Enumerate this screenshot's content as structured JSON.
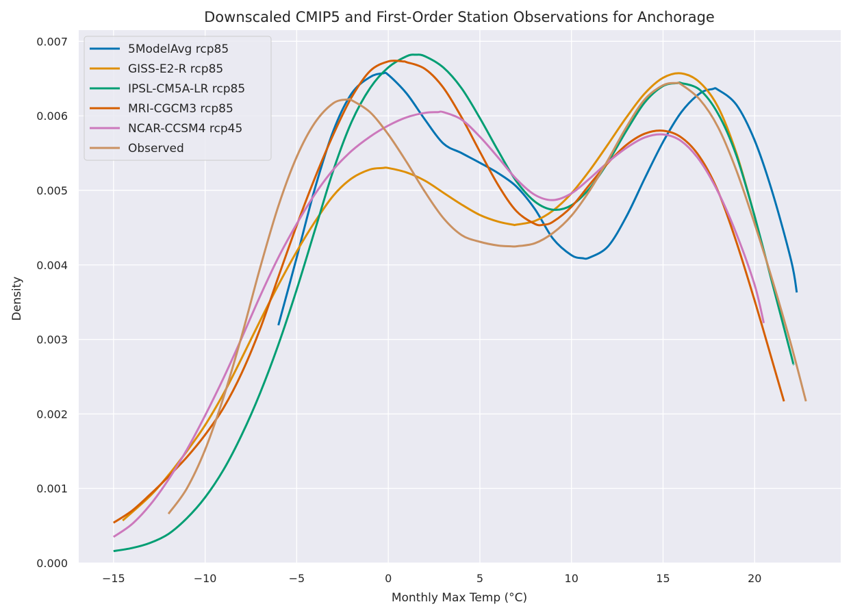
{
  "chart_data": {
    "type": "line",
    "title": "Downscaled CMIP5 and First-Order Station Observations for Anchorage",
    "xlabel": "Monthly Max Temp (°C)",
    "ylabel": "Density",
    "xlim": [
      -16.9,
      24.7
    ],
    "ylim": [
      0,
      0.00715
    ],
    "xticks": [
      -15,
      -10,
      -5,
      0,
      5,
      10,
      15,
      20
    ],
    "xtick_labels": [
      "−15",
      "−10",
      "−5",
      "0",
      "5",
      "10",
      "15",
      "20"
    ],
    "yticks": [
      0,
      0.001,
      0.002,
      0.003,
      0.004,
      0.005,
      0.006,
      0.007
    ],
    "ytick_labels": [
      "0.000",
      "0.001",
      "0.002",
      "0.003",
      "0.004",
      "0.005",
      "0.006",
      "0.007"
    ],
    "grid": true,
    "legend_position": "top-left",
    "background": "#eaeaf2",
    "series": [
      {
        "name": "5ModelAvg rcp85",
        "color": "#0173b2",
        "points": [
          [
            -6.0,
            0.00319
          ],
          [
            -5,
            0.0041
          ],
          [
            -4,
            0.00503
          ],
          [
            -3,
            0.0058
          ],
          [
            -2,
            0.0063
          ],
          [
            -1,
            0.00652
          ],
          [
            -0.3,
            0.00657
          ],
          [
            0,
            0.00655
          ],
          [
            1,
            0.0063
          ],
          [
            2,
            0.00595
          ],
          [
            3,
            0.00563
          ],
          [
            4,
            0.0055
          ],
          [
            5,
            0.00537
          ],
          [
            6,
            0.00523
          ],
          [
            7,
            0.00505
          ],
          [
            8,
            0.00475
          ],
          [
            9,
            0.00435
          ],
          [
            10,
            0.00413
          ],
          [
            10.6,
            0.00409
          ],
          [
            11,
            0.0041
          ],
          [
            12,
            0.00425
          ],
          [
            13,
            0.00465
          ],
          [
            14,
            0.00516
          ],
          [
            15,
            0.00565
          ],
          [
            16,
            0.00605
          ],
          [
            17,
            0.0063
          ],
          [
            17.7,
            0.00636
          ],
          [
            18,
            0.00635
          ],
          [
            19,
            0.00615
          ],
          [
            20,
            0.00567
          ],
          [
            21,
            0.00495
          ],
          [
            22,
            0.00405
          ],
          [
            22.3,
            0.00363
          ]
        ]
      },
      {
        "name": "GISS-E2-R rcp85",
        "color": "#de8f05",
        "points": [
          [
            -14.5,
            0.00057
          ],
          [
            -13,
            0.0009
          ],
          [
            -12,
            0.00118
          ],
          [
            -11,
            0.0015
          ],
          [
            -10,
            0.00185
          ],
          [
            -9,
            0.00227
          ],
          [
            -8,
            0.00275
          ],
          [
            -7,
            0.00325
          ],
          [
            -6,
            0.00373
          ],
          [
            -5,
            0.00418
          ],
          [
            -4,
            0.00458
          ],
          [
            -3,
            0.00493
          ],
          [
            -2,
            0.00516
          ],
          [
            -1,
            0.00528
          ],
          [
            -0.3,
            0.0053
          ],
          [
            0,
            0.0053
          ],
          [
            1,
            0.00524
          ],
          [
            2,
            0.00513
          ],
          [
            3,
            0.00497
          ],
          [
            4,
            0.00481
          ],
          [
            5,
            0.00467
          ],
          [
            6,
            0.00458
          ],
          [
            6.8,
            0.00454
          ],
          [
            7,
            0.00454
          ],
          [
            8,
            0.00459
          ],
          [
            9,
            0.00473
          ],
          [
            10,
            0.00496
          ],
          [
            11,
            0.00527
          ],
          [
            12,
            0.00562
          ],
          [
            13,
            0.00598
          ],
          [
            14,
            0.0063
          ],
          [
            15,
            0.00651
          ],
          [
            16,
            0.00657
          ],
          [
            17,
            0.00645
          ],
          [
            18,
            0.00612
          ],
          [
            19,
            0.0055
          ],
          [
            20,
            0.00465
          ],
          [
            20.2,
            0.00443
          ]
        ]
      },
      {
        "name": "IPSL-CM5A-LR rcp85",
        "color": "#029e73",
        "points": [
          [
            -15,
            0.00016
          ],
          [
            -14,
            0.0002
          ],
          [
            -13,
            0.00027
          ],
          [
            -12,
            0.00039
          ],
          [
            -11,
            0.0006
          ],
          [
            -10,
            0.00088
          ],
          [
            -9,
            0.00125
          ],
          [
            -8,
            0.00172
          ],
          [
            -7,
            0.00228
          ],
          [
            -6,
            0.00293
          ],
          [
            -5,
            0.00367
          ],
          [
            -4,
            0.00447
          ],
          [
            -3,
            0.00527
          ],
          [
            -2,
            0.00592
          ],
          [
            -1,
            0.00637
          ],
          [
            0,
            0.00665
          ],
          [
            1,
            0.0068
          ],
          [
            1.5,
            0.00682
          ],
          [
            2,
            0.0068
          ],
          [
            3,
            0.00665
          ],
          [
            4,
            0.00637
          ],
          [
            5,
            0.00597
          ],
          [
            6,
            0.00553
          ],
          [
            7,
            0.00512
          ],
          [
            8,
            0.00485
          ],
          [
            9,
            0.00474
          ],
          [
            10,
            0.0048
          ],
          [
            11,
            0.00503
          ],
          [
            12,
            0.00538
          ],
          [
            13,
            0.0058
          ],
          [
            14,
            0.00618
          ],
          [
            15,
            0.0064
          ],
          [
            15.8,
            0.00644
          ],
          [
            16,
            0.00644
          ],
          [
            17,
            0.00635
          ],
          [
            18,
            0.00603
          ],
          [
            19,
            0.00547
          ],
          [
            20,
            0.00465
          ],
          [
            21,
            0.00372
          ],
          [
            22,
            0.00278
          ],
          [
            22.1,
            0.00267
          ]
        ]
      },
      {
        "name": "MRI-CGCM3 rcp85",
        "color": "#d55e00",
        "points": [
          [
            -15,
            0.00054
          ],
          [
            -14,
            0.0007
          ],
          [
            -13,
            0.00092
          ],
          [
            -12,
            0.00116
          ],
          [
            -11,
            0.00142
          ],
          [
            -10,
            0.00172
          ],
          [
            -9,
            0.00208
          ],
          [
            -8,
            0.00255
          ],
          [
            -7,
            0.00314
          ],
          [
            -6,
            0.00384
          ],
          [
            -5,
            0.00453
          ],
          [
            -4,
            0.00517
          ],
          [
            -3,
            0.00575
          ],
          [
            -2,
            0.00625
          ],
          [
            -1,
            0.0066
          ],
          [
            0,
            0.00673
          ],
          [
            0.8,
            0.00673
          ],
          [
            1,
            0.00672
          ],
          [
            2,
            0.00663
          ],
          [
            3,
            0.00638
          ],
          [
            4,
            0.00598
          ],
          [
            5,
            0.00552
          ],
          [
            6,
            0.00507
          ],
          [
            7,
            0.00472
          ],
          [
            8,
            0.00455
          ],
          [
            8.5,
            0.00454
          ],
          [
            9,
            0.00458
          ],
          [
            10,
            0.00478
          ],
          [
            11,
            0.00508
          ],
          [
            12,
            0.00537
          ],
          [
            13,
            0.00561
          ],
          [
            14,
            0.00576
          ],
          [
            15,
            0.0058
          ],
          [
            16,
            0.00571
          ],
          [
            17,
            0.00545
          ],
          [
            18,
            0.00499
          ],
          [
            19,
            0.00431
          ],
          [
            20,
            0.00352
          ],
          [
            21,
            0.00268
          ],
          [
            21.6,
            0.00217
          ]
        ]
      },
      {
        "name": "NCAR-CCSM4 rcp45",
        "color": "#cc78bc",
        "points": [
          [
            -15,
            0.00035
          ],
          [
            -14,
            0.00052
          ],
          [
            -13,
            0.00078
          ],
          [
            -12,
            0.00112
          ],
          [
            -11,
            0.00152
          ],
          [
            -10,
            0.00198
          ],
          [
            -9,
            0.00248
          ],
          [
            -8,
            0.00302
          ],
          [
            -7,
            0.00358
          ],
          [
            -6,
            0.0041
          ],
          [
            -5,
            0.00455
          ],
          [
            -4,
            0.00495
          ],
          [
            -3,
            0.00528
          ],
          [
            -2,
            0.00553
          ],
          [
            -1,
            0.00572
          ],
          [
            0,
            0.00587
          ],
          [
            1,
            0.00598
          ],
          [
            2,
            0.00604
          ],
          [
            2.7,
            0.00605
          ],
          [
            3,
            0.00605
          ],
          [
            4,
            0.00595
          ],
          [
            5,
            0.00572
          ],
          [
            6,
            0.00544
          ],
          [
            7,
            0.00515
          ],
          [
            8,
            0.00494
          ],
          [
            9,
            0.00487
          ],
          [
            10,
            0.00496
          ],
          [
            11,
            0.00516
          ],
          [
            12,
            0.00538
          ],
          [
            13,
            0.00557
          ],
          [
            14,
            0.00571
          ],
          [
            15,
            0.00575
          ],
          [
            16,
            0.00566
          ],
          [
            17,
            0.0054
          ],
          [
            18,
            0.00498
          ],
          [
            19,
            0.00442
          ],
          [
            20,
            0.00373
          ],
          [
            20.5,
            0.00322
          ]
        ]
      },
      {
        "name": "Observed",
        "color": "#ca9161",
        "points": [
          [
            -12,
            0.00066
          ],
          [
            -11,
            0.001
          ],
          [
            -10,
            0.00152
          ],
          [
            -9,
            0.00222
          ],
          [
            -8,
            0.00305
          ],
          [
            -7,
            0.00396
          ],
          [
            -6,
            0.00479
          ],
          [
            -5,
            0.00545
          ],
          [
            -4,
            0.00591
          ],
          [
            -3,
            0.00617
          ],
          [
            -2.2,
            0.00622
          ],
          [
            -2,
            0.00621
          ],
          [
            -1,
            0.00605
          ],
          [
            0,
            0.00575
          ],
          [
            1,
            0.00538
          ],
          [
            2,
            0.00498
          ],
          [
            3,
            0.00463
          ],
          [
            4,
            0.0044
          ],
          [
            5,
            0.00431
          ],
          [
            6,
            0.00426
          ],
          [
            6.7,
            0.00425
          ],
          [
            7,
            0.00425
          ],
          [
            8,
            0.00429
          ],
          [
            9,
            0.00443
          ],
          [
            10,
            0.00466
          ],
          [
            11,
            0.005
          ],
          [
            12,
            0.00541
          ],
          [
            13,
            0.00585
          ],
          [
            14,
            0.00622
          ],
          [
            15,
            0.00641
          ],
          [
            15.7,
            0.00644
          ],
          [
            16,
            0.00642
          ],
          [
            17,
            0.00622
          ],
          [
            18,
            0.00585
          ],
          [
            19,
            0.00527
          ],
          [
            20,
            0.00455
          ],
          [
            21,
            0.00377
          ],
          [
            22,
            0.00292
          ],
          [
            22.8,
            0.00217
          ]
        ]
      }
    ]
  }
}
